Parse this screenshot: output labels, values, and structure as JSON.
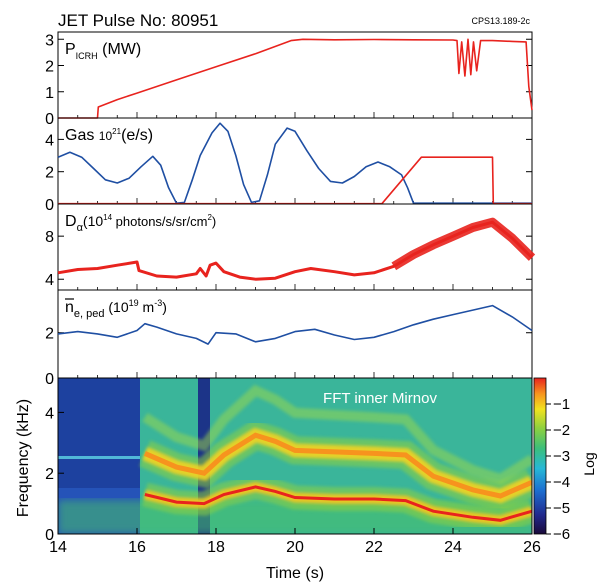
{
  "header": {
    "title": "JET Pulse No: 80951",
    "code": "CPS13.189-2c"
  },
  "colors": {
    "red": "#e8231e",
    "blue": "#1f4fa3",
    "axis": "#000000"
  },
  "chart_data": [
    {
      "type": "line",
      "panel": "picrh",
      "label_main": "P",
      "label_sub": "ICRH",
      "label_unit": " (MW)",
      "xlim": [
        14,
        26
      ],
      "ylim": [
        0,
        3.2
      ],
      "yticks": [
        "0",
        "1",
        "2",
        "3"
      ],
      "series": [
        {
          "color": "red",
          "points": [
            [
              14.0,
              0
            ],
            [
              15.0,
              0
            ],
            [
              15.02,
              0.42
            ],
            [
              15.5,
              0.7
            ],
            [
              16,
              0.95
            ],
            [
              17,
              1.45
            ],
            [
              18,
              1.95
            ],
            [
              19,
              2.45
            ],
            [
              19.9,
              2.95
            ],
            [
              20.2,
              3.0
            ],
            [
              21,
              2.98
            ],
            [
              22,
              2.99
            ],
            [
              23,
              2.98
            ],
            [
              24,
              2.97
            ],
            [
              24.1,
              2.95
            ],
            [
              24.15,
              1.7
            ],
            [
              24.22,
              2.9
            ],
            [
              24.3,
              1.6
            ],
            [
              24.38,
              3.0
            ],
            [
              24.45,
              1.65
            ],
            [
              24.52,
              2.9
            ],
            [
              24.6,
              1.8
            ],
            [
              24.7,
              2.95
            ],
            [
              25,
              2.95
            ],
            [
              25.5,
              2.92
            ],
            [
              25.85,
              2.9
            ],
            [
              25.92,
              1.2
            ],
            [
              26,
              0.3
            ]
          ]
        }
      ]
    },
    {
      "type": "line",
      "panel": "gas",
      "label_main": "Gas ",
      "label_sup": "21",
      "label_pre": "10",
      "label_unit": "(e/s)",
      "xlim": [
        14,
        26
      ],
      "ylim": [
        0,
        5.2
      ],
      "yticks": [
        "0",
        "2",
        "4"
      ],
      "series": [
        {
          "color": "blue",
          "points": [
            [
              14.0,
              2.9
            ],
            [
              14.3,
              3.2
            ],
            [
              14.6,
              2.9
            ],
            [
              14.9,
              2.2
            ],
            [
              15.2,
              1.5
            ],
            [
              15.5,
              1.3
            ],
            [
              15.8,
              1.6
            ],
            [
              16.1,
              2.3
            ],
            [
              16.4,
              2.95
            ],
            [
              16.6,
              2.4
            ],
            [
              16.8,
              1.0
            ],
            [
              17.0,
              0.05
            ],
            [
              17.2,
              0.1
            ],
            [
              17.4,
              1.5
            ],
            [
              17.6,
              3.0
            ],
            [
              17.9,
              4.4
            ],
            [
              18.1,
              5.0
            ],
            [
              18.3,
              4.5
            ],
            [
              18.5,
              3.0
            ],
            [
              18.7,
              1.2
            ],
            [
              18.9,
              0.1
            ],
            [
              19.1,
              0.2
            ],
            [
              19.3,
              1.8
            ],
            [
              19.5,
              3.7
            ],
            [
              19.8,
              4.7
            ],
            [
              20.0,
              4.5
            ],
            [
              20.3,
              3.3
            ],
            [
              20.6,
              2.2
            ],
            [
              20.9,
              1.4
            ],
            [
              21.2,
              1.3
            ],
            [
              21.5,
              1.7
            ],
            [
              21.8,
              2.3
            ],
            [
              22.1,
              2.6
            ],
            [
              22.4,
              2.3
            ],
            [
              22.7,
              1.8
            ],
            [
              22.85,
              1.0
            ],
            [
              23.0,
              0.05
            ],
            [
              26.0,
              0.05
            ]
          ]
        },
        {
          "color": "red",
          "points": [
            [
              14.0,
              0.02
            ],
            [
              22.2,
              0.02
            ],
            [
              23.2,
              2.9
            ],
            [
              25.0,
              2.9
            ],
            [
              25.02,
              0.02
            ],
            [
              26,
              0.02
            ]
          ]
        }
      ]
    },
    {
      "type": "line",
      "panel": "dalpha",
      "label_main": "D",
      "label_sub": "α",
      "label_pre": "(10",
      "label_sup": "14",
      "label_unit": " photons/s/sr/cm",
      "label_sup2": "2",
      "label_close": ")",
      "xlim": [
        14,
        26
      ],
      "ylim": [
        3,
        10.8
      ],
      "yticks": [
        "4",
        "8"
      ],
      "series": [
        {
          "color": "red",
          "points": [
            [
              14.0,
              4.6
            ],
            [
              14.5,
              4.9
            ],
            [
              15.0,
              5.0
            ],
            [
              15.5,
              5.3
            ],
            [
              16.0,
              5.6
            ],
            [
              16.05,
              4.8
            ],
            [
              16.5,
              4.3
            ],
            [
              17.0,
              4.2
            ],
            [
              17.5,
              4.5
            ],
            [
              17.6,
              5.0
            ],
            [
              17.75,
              4.3
            ],
            [
              17.85,
              5.3
            ],
            [
              18.0,
              5.5
            ],
            [
              18.2,
              4.7
            ],
            [
              18.6,
              4.2
            ],
            [
              19.0,
              4.0
            ],
            [
              19.5,
              4.1
            ],
            [
              20.0,
              4.7
            ],
            [
              20.4,
              5.0
            ],
            [
              21.0,
              4.7
            ],
            [
              21.5,
              4.4
            ],
            [
              22.0,
              4.6
            ],
            [
              22.5,
              5.2
            ],
            [
              23.0,
              6.3
            ],
            [
              23.5,
              7.2
            ],
            [
              24.0,
              8.0
            ],
            [
              24.5,
              8.8
            ],
            [
              25.0,
              9.3
            ],
            [
              25.5,
              7.8
            ],
            [
              26.0,
              6.0
            ]
          ]
        }
      ]
    },
    {
      "type": "line",
      "panel": "density",
      "label_main": "n",
      "label_sub": "e, ped",
      "label_pre": " (10",
      "label_sup": "19",
      "label_unit": " m",
      "label_sup2": "-3",
      "label_close": ")",
      "xlim": [
        14,
        26
      ],
      "ylim": [
        0,
        3.8
      ],
      "yticks": [
        "0",
        "2"
      ],
      "series": [
        {
          "color": "blue",
          "points": [
            [
              14.0,
              1.95
            ],
            [
              14.5,
              2.05
            ],
            [
              15.0,
              1.95
            ],
            [
              15.5,
              1.8
            ],
            [
              16.0,
              2.1
            ],
            [
              16.2,
              2.4
            ],
            [
              16.5,
              2.25
            ],
            [
              17.0,
              1.95
            ],
            [
              17.5,
              1.75
            ],
            [
              17.8,
              1.5
            ],
            [
              18.0,
              2.0
            ],
            [
              18.5,
              1.95
            ],
            [
              19.0,
              1.6
            ],
            [
              19.5,
              1.75
            ],
            [
              20.0,
              2.05
            ],
            [
              20.5,
              2.15
            ],
            [
              21.0,
              1.9
            ],
            [
              21.5,
              1.7
            ],
            [
              22.0,
              1.8
            ],
            [
              22.5,
              2.05
            ],
            [
              23.0,
              2.35
            ],
            [
              23.5,
              2.6
            ],
            [
              24.0,
              2.8
            ],
            [
              24.5,
              3.0
            ],
            [
              25.0,
              3.2
            ],
            [
              25.5,
              2.7
            ],
            [
              26.0,
              2.1
            ]
          ]
        }
      ]
    },
    {
      "type": "heatmap",
      "panel": "spectrogram",
      "annotation": "FFT inner Mirnov",
      "ylabel": "Frequency (kHz)",
      "xlabel": "Time (s)",
      "xlim": [
        14,
        26
      ],
      "ylim": [
        0,
        5
      ],
      "xticks": [
        "14",
        "16",
        "18",
        "20",
        "22",
        "24",
        "26"
      ],
      "yticks": [
        "0",
        "2",
        "4"
      ],
      "colorbar": {
        "label": "Log",
        "ticks": [
          "−1",
          "−2",
          "−3",
          "−4",
          "−5",
          "−6"
        ],
        "range": [
          -6,
          0
        ]
      },
      "modes": [
        {
          "name": "",
          "points": [
            [
              16.2,
              1.3
            ],
            [
              17.0,
              1.05
            ],
            [
              17.7,
              1.0
            ],
            [
              18.2,
              1.3
            ],
            [
              19.0,
              1.55
            ],
            [
              19.5,
              1.4
            ],
            [
              20.0,
              1.2
            ],
            [
              21.0,
              1.15
            ],
            [
              22.0,
              1.15
            ],
            [
              22.8,
              1.1
            ],
            [
              23.5,
              0.75
            ],
            [
              24.5,
              0.55
            ],
            [
              25.2,
              0.45
            ],
            [
              26.0,
              0.75
            ]
          ]
        },
        {
          "name": "",
          "points": [
            [
              16.2,
              2.65
            ],
            [
              17.0,
              2.2
            ],
            [
              17.7,
              2.0
            ],
            [
              18.2,
              2.6
            ],
            [
              19.0,
              3.25
            ],
            [
              19.5,
              3.05
            ],
            [
              20.0,
              2.75
            ],
            [
              21.0,
              2.7
            ],
            [
              22.0,
              2.65
            ],
            [
              22.8,
              2.6
            ],
            [
              23.5,
              1.9
            ],
            [
              24.5,
              1.45
            ],
            [
              25.2,
              1.25
            ],
            [
              26.0,
              1.7
            ]
          ]
        }
      ]
    }
  ]
}
